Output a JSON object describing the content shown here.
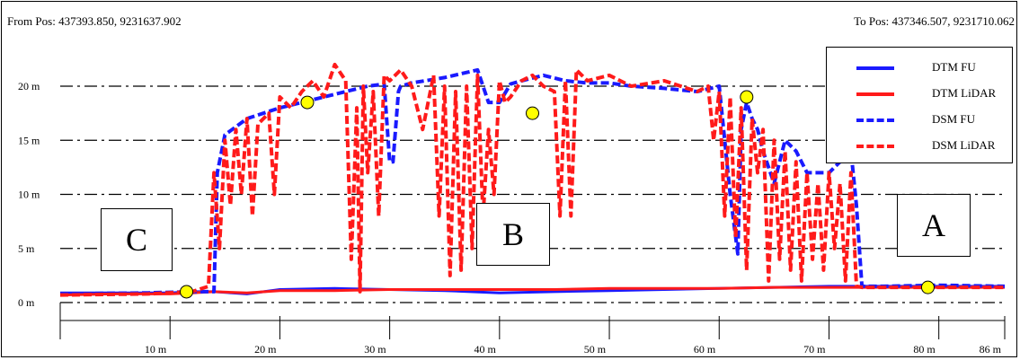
{
  "header": {
    "from_pos": "From Pos: 437393.850, 9231637.902",
    "to_pos": "To Pos: 437346.507, 9231710.062"
  },
  "colors": {
    "blue": "#1a1aff",
    "red": "#ff1a1a",
    "marker": "#ffff00"
  },
  "chart_data": {
    "type": "line",
    "title": "",
    "xlabel": "",
    "ylabel": "",
    "xlim": [
      0,
      86
    ],
    "ylim": [
      -2,
      23
    ],
    "grid": "horizontal dash-dot",
    "legend_position": "top-right",
    "y_ticks": [
      {
        "value": 20,
        "label": "20 m"
      },
      {
        "value": 15,
        "label": "15 m"
      },
      {
        "value": 10,
        "label": "10 m"
      },
      {
        "value": 5,
        "label": "5 m"
      },
      {
        "value": 0,
        "label": "0 m"
      }
    ],
    "x_ticks": [
      {
        "value": 10,
        "label": "10 m"
      },
      {
        "value": 20,
        "label": "20 m"
      },
      {
        "value": 30,
        "label": "30 m"
      },
      {
        "value": 40,
        "label": "40 m"
      },
      {
        "value": 50,
        "label": "50 m"
      },
      {
        "value": 60,
        "label": "60 m"
      },
      {
        "value": 70,
        "label": "70 m"
      },
      {
        "value": 80,
        "label": "80 m"
      },
      {
        "value": 86,
        "label": "86 m"
      }
    ],
    "series": [
      {
        "name": "DTM FU",
        "color": "#1a1aff",
        "style": "solid",
        "x": [
          0,
          5,
          10,
          12,
          14,
          17,
          20,
          25,
          30,
          35,
          40,
          45,
          50,
          55,
          60,
          65,
          70,
          75,
          80,
          86
        ],
        "y": [
          0.9,
          0.9,
          0.9,
          1.0,
          1.0,
          0.8,
          1.2,
          1.3,
          1.2,
          1.1,
          0.9,
          1.0,
          1.1,
          1.2,
          1.3,
          1.4,
          1.5,
          1.5,
          1.5,
          1.5
        ]
      },
      {
        "name": "DTM LiDAR",
        "color": "#ff1a1a",
        "style": "solid",
        "x": [
          0,
          5,
          10,
          12,
          14,
          17,
          20,
          25,
          30,
          35,
          40,
          45,
          50,
          55,
          60,
          65,
          70,
          75,
          80,
          86
        ],
        "y": [
          0.7,
          0.8,
          0.8,
          0.9,
          1.0,
          0.9,
          1.1,
          1.1,
          1.2,
          1.2,
          1.2,
          1.2,
          1.3,
          1.3,
          1.3,
          1.4,
          1.4,
          1.4,
          1.4,
          1.4
        ]
      },
      {
        "name": "DSM FU",
        "color": "#1a1aff",
        "style": "dashed",
        "x": [
          0,
          8,
          12,
          14,
          14.3,
          15,
          17,
          20,
          22,
          24,
          26,
          28,
          29.5,
          30,
          30.3,
          30.8,
          31,
          32,
          35,
          38,
          39,
          40,
          41,
          42,
          44,
          46,
          48,
          50,
          52,
          55,
          58,
          60,
          61,
          61.7,
          62,
          62.5,
          63,
          63.5,
          64,
          65,
          66,
          67,
          68,
          70,
          71,
          72,
          72.5,
          73,
          75,
          80,
          86
        ],
        "y": [
          0.8,
          0.9,
          1.0,
          1.0,
          12.0,
          15.5,
          17.0,
          18.0,
          18.5,
          19.0,
          19.5,
          20.0,
          20.2,
          13.0,
          13.0,
          19.5,
          20.0,
          20.3,
          20.8,
          21.5,
          18.5,
          18.5,
          20.2,
          20.5,
          21.0,
          20.5,
          20.3,
          20.3,
          20.0,
          19.8,
          19.5,
          20.0,
          10.0,
          4.5,
          16.0,
          18.5,
          17.0,
          16.0,
          14.0,
          11.0,
          15.0,
          14.0,
          12.0,
          12.0,
          13.0,
          14.0,
          9.0,
          1.5,
          1.5,
          1.6,
          1.5
        ]
      },
      {
        "name": "DSM LiDAR",
        "color": "#ff1a1a",
        "style": "dashed",
        "x": [
          0,
          8,
          12,
          13.5,
          14,
          14.5,
          15,
          15.5,
          16,
          16.5,
          17,
          17.5,
          18,
          19,
          19.5,
          20,
          21,
          22,
          23,
          24,
          25,
          26,
          26.5,
          27,
          27.3,
          27.6,
          28,
          28.5,
          29,
          29.5,
          30,
          31,
          32,
          33,
          34,
          34.5,
          35,
          35.5,
          36,
          36.5,
          37,
          37.5,
          38,
          38.5,
          39,
          39.5,
          40,
          40.5,
          41,
          42,
          43,
          44,
          45,
          45.5,
          46,
          46.5,
          47,
          48,
          50,
          52,
          55,
          58,
          59,
          59.5,
          60,
          60.5,
          61,
          61.5,
          62,
          62.5,
          63,
          63.5,
          64,
          64.5,
          65,
          65.5,
          66,
          66.5,
          67,
          67.5,
          68,
          68.5,
          69,
          69.5,
          70,
          70.5,
          71,
          71.5,
          72,
          72.5,
          73,
          80,
          86
        ],
        "y": [
          0.7,
          0.8,
          1.0,
          1.5,
          12.0,
          5.0,
          15.0,
          9.0,
          16.0,
          10.0,
          17.0,
          8.0,
          16.5,
          17.5,
          10.0,
          19.0,
          18.0,
          19.5,
          20.5,
          19.0,
          22.0,
          20.5,
          4.0,
          18.0,
          1.0,
          20.0,
          12.0,
          19.5,
          8.0,
          21.0,
          20.5,
          21.5,
          20.0,
          16.0,
          21.0,
          8.0,
          20.0,
          2.5,
          19.5,
          3.0,
          20.0,
          5.0,
          21.0,
          8.0,
          16.0,
          10.0,
          20.5,
          18.5,
          19.0,
          20.5,
          21.0,
          20.0,
          19.5,
          8.0,
          20.5,
          8.0,
          21.5,
          20.5,
          21.0,
          20.0,
          20.5,
          19.5,
          20.0,
          15.0,
          19.5,
          8.0,
          19.0,
          6.0,
          18.0,
          3.0,
          17.0,
          12.0,
          16.0,
          2.0,
          15.0,
          4.0,
          14.0,
          3.0,
          13.0,
          2.0,
          12.0,
          4.0,
          11.0,
          3.0,
          12.0,
          5.0,
          11.0,
          2.0,
          12.0,
          1.5,
          1.4,
          1.4,
          1.4
        ]
      }
    ],
    "markers": [
      {
        "x": 11.5,
        "y": 1.0
      },
      {
        "x": 22.5,
        "y": 18.5
      },
      {
        "x": 43.0,
        "y": 17.5
      },
      {
        "x": 62.5,
        "y": 19.0
      },
      {
        "x": 79.0,
        "y": 1.4
      }
    ],
    "annotations": [
      "A",
      "B",
      "C"
    ]
  },
  "legend": {
    "items": [
      {
        "label": "DTM FU",
        "color": "#1a1aff",
        "style": "solid"
      },
      {
        "label": "DTM LiDAR",
        "color": "#ff1a1a",
        "style": "solid"
      },
      {
        "label": "DSM FU",
        "color": "#1a1aff",
        "style": "dashed"
      },
      {
        "label": "DSM LiDAR",
        "color": "#ff1a1a",
        "style": "dashed"
      }
    ]
  }
}
